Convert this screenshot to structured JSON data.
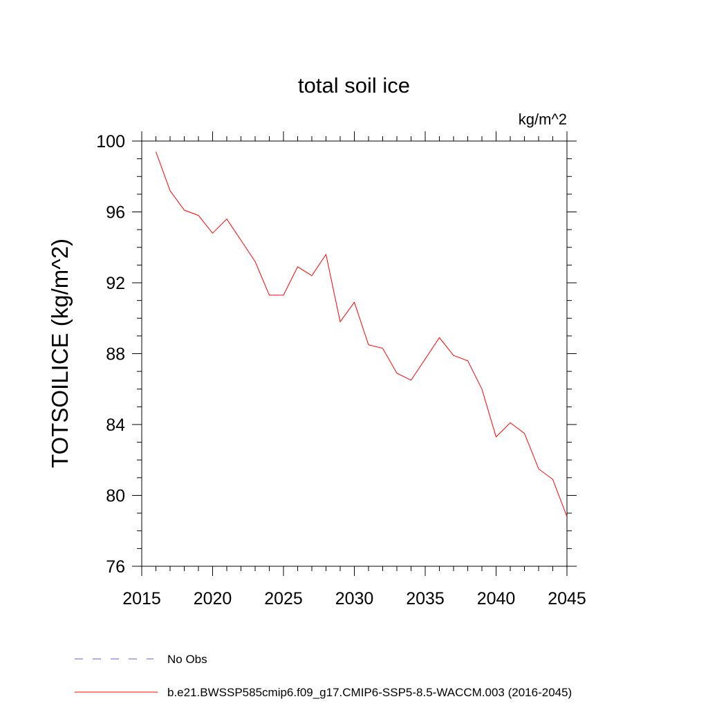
{
  "chart_data": {
    "type": "line",
    "title": "total soil ice",
    "units_label": "kg/m^2",
    "ylabel": "TOTSOILICE  (kg/m^2)",
    "xlabel": "",
    "xlim": [
      2015,
      2045
    ],
    "ylim": [
      76,
      100
    ],
    "x_ticks": [
      "2015",
      "2020",
      "2025",
      "2030",
      "2035",
      "2040",
      "2045"
    ],
    "y_ticks": [
      "76",
      "80",
      "84",
      "88",
      "92",
      "96",
      "100"
    ],
    "grid": false,
    "legend_position": "bottom",
    "series": [
      {
        "name": "b.e21.BWSSP585cmip6.f09_g17.CMIP6-SSP5-8.5-WACCM.003 (2016-2045)",
        "color": "#ff0000",
        "style": "solid",
        "x": [
          2016,
          2017,
          2018,
          2019,
          2020,
          2021,
          2022,
          2023,
          2024,
          2025,
          2026,
          2027,
          2028,
          2029,
          2030,
          2031,
          2032,
          2033,
          2034,
          2035,
          2036,
          2037,
          2038,
          2039,
          2040,
          2041,
          2042,
          2043,
          2044,
          2045
        ],
        "y": [
          99.4,
          97.2,
          96.1,
          95.8,
          94.8,
          95.6,
          94.4,
          93.2,
          91.3,
          91.3,
          92.9,
          92.4,
          93.6,
          89.8,
          90.9,
          88.5,
          88.3,
          86.9,
          86.5,
          87.7,
          88.9,
          87.9,
          87.6,
          86.0,
          83.3,
          84.1,
          83.5,
          81.5,
          80.9,
          78.8
        ]
      }
    ],
    "legend": [
      {
        "label": "No Obs",
        "color": "#6a5acd",
        "style": "dashed"
      },
      {
        "label": "b.e21.BWSSP585cmip6.f09_g17.CMIP6-SSP5-8.5-WACCM.003 (2016-2045)",
        "color": "#ff0000",
        "style": "solid"
      }
    ]
  }
}
